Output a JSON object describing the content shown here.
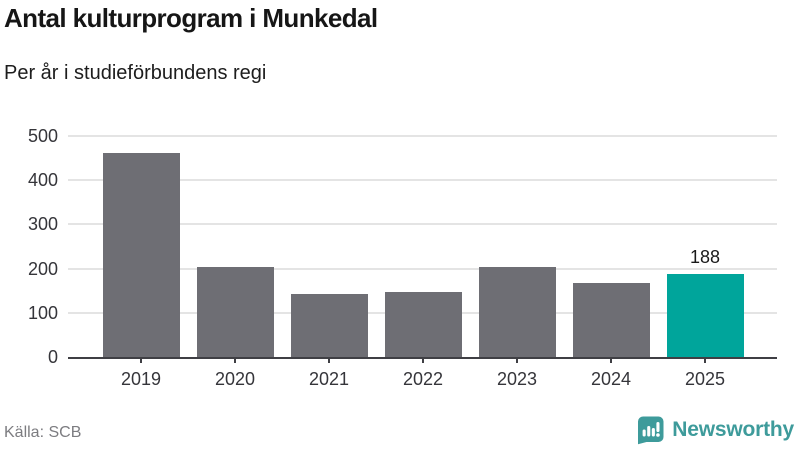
{
  "header": {
    "title": "Antal kulturprogram i Munkedal",
    "subtitle": "Per år i studieförbundens regi"
  },
  "chart_data": {
    "type": "bar",
    "title": "Antal kulturprogram i Munkedal",
    "subtitle": "Per år i studieförbundens regi",
    "categories": [
      "2019",
      "2020",
      "2021",
      "2022",
      "2023",
      "2024",
      "2025"
    ],
    "values": [
      462,
      204,
      142,
      148,
      204,
      168,
      188
    ],
    "xlabel": "",
    "ylabel": "",
    "ylim": [
      0,
      500
    ],
    "yticks": [
      0,
      100,
      200,
      300,
      400,
      500
    ],
    "grid": true,
    "legend": "none",
    "highlighted_category": "2025",
    "data_label": {
      "category": "2025",
      "text": "188"
    },
    "colors": {
      "bar": "#6e6e74",
      "highlight": "#00a59b",
      "gridline": "#e4e4e4",
      "axis": "#3f3f44",
      "tick_text": "#35353a"
    }
  },
  "footer": {
    "source": "Källa: SCB",
    "brand": "Newsworthy",
    "brand_color": "#3e9b9b",
    "logo_icon": "newsworthy-bar-chart-bubble-icon"
  }
}
